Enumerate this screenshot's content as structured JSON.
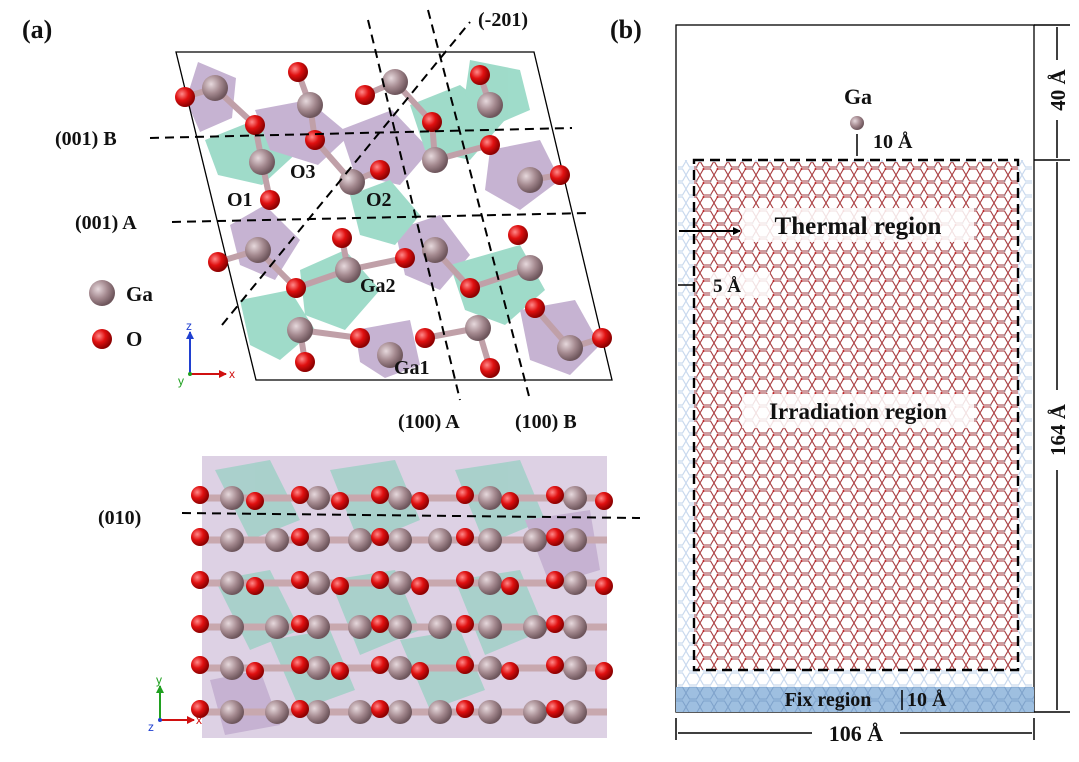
{
  "panel_a": {
    "label": "(a)",
    "planes": {
      "p001B": "(001) B",
      "p001A": "(001) A",
      "m201": "(-201)",
      "p100A": "(100) A",
      "p100B": "(100) B",
      "p010": "(010)"
    },
    "atom_labels": {
      "O1": "O1",
      "O2": "O2",
      "O3": "O3",
      "Ga1": "Ga1",
      "Ga2": "Ga2"
    },
    "legend": {
      "ga": "Ga",
      "o": "O"
    },
    "axes_top": {
      "z": "z",
      "x": "x",
      "y": "y"
    },
    "axes_bottom": {
      "y": "y",
      "x": "x",
      "z": "z"
    }
  },
  "panel_b": {
    "label": "(b)",
    "ga_label": "Ga",
    "ten_a_top": "10 Å",
    "thermal": "Thermal region",
    "five_a": "5 Å",
    "irradiation": "Irradiation region",
    "fix": "Fix region",
    "ten_a_fix": "10 Å",
    "width_label": "106 Å",
    "h40": "40 Å",
    "h164": "164 Å"
  },
  "colors": {
    "ga": "#a58a90",
    "o": "#e01010",
    "bond_o": "#e23a3a",
    "bond_ga": "#a58a90",
    "oct": "#7fd0b8",
    "tet": "#b49ac4",
    "lattice": "#b04040",
    "fix_bg": "#9ebfe0",
    "halo": "#c9d9ee"
  }
}
